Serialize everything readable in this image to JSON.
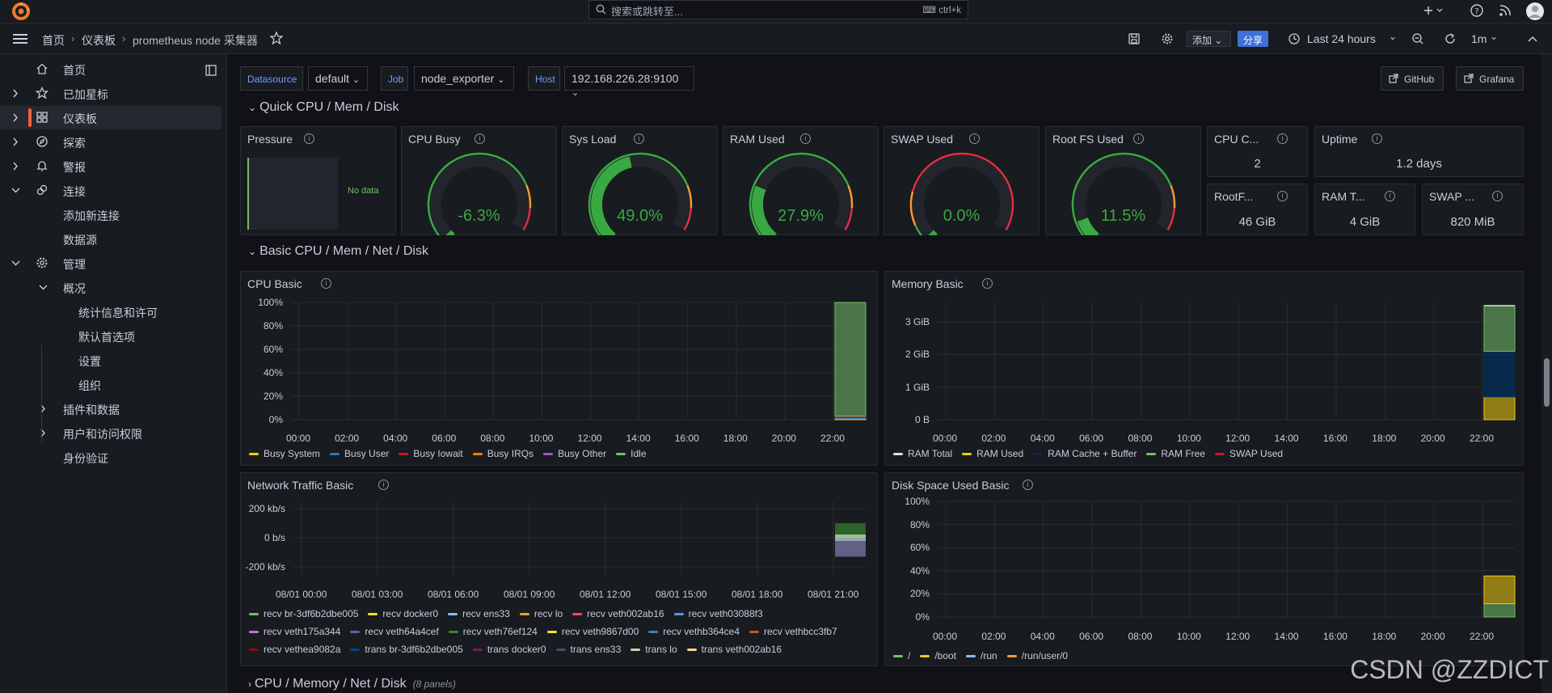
{
  "search": {
    "placeholder": "搜索或跳转至...",
    "shortcut": "ctrl+k"
  },
  "breadcrumb": {
    "home": "首页",
    "dashboards": "仪表板",
    "current": "prometheus node 采集器"
  },
  "toolbar": {
    "add_label": "添加",
    "share_label": "分享",
    "time_range": "Last 24 hours",
    "refresh_interval": "1m"
  },
  "sidebar": {
    "items": [
      {
        "label": "首页"
      },
      {
        "label": "已加星标"
      },
      {
        "label": "仪表板"
      },
      {
        "label": "探索"
      },
      {
        "label": "警报"
      },
      {
        "label": "连接"
      },
      {
        "label": "添加新连接"
      },
      {
        "label": "数据源"
      },
      {
        "label": "管理"
      },
      {
        "label": "概况"
      },
      {
        "label": "统计信息和许可"
      },
      {
        "label": "默认首选项"
      },
      {
        "label": "设置"
      },
      {
        "label": "组织"
      },
      {
        "label": "插件和数据"
      },
      {
        "label": "用户和访问权限"
      },
      {
        "label": "身份验证"
      }
    ]
  },
  "variables": {
    "datasource_label": "Datasource",
    "datasource_value": "default",
    "job_label": "Job",
    "job_value": "node_exporter",
    "host_label": "Host",
    "host_value": "192.168.226.28:9100"
  },
  "links": {
    "github": "GitHub",
    "grafana": "Grafana"
  },
  "rows": {
    "quick": "Quick CPU / Mem / Disk",
    "basic": "Basic CPU / Mem / Net / Disk",
    "cpu_mem_net_disk": "CPU / Memory / Net / Disk",
    "cpu_mem_net_disk_count": "(8 panels)"
  },
  "gauges": [
    {
      "title": "Pressure",
      "value": null,
      "no_data": "No data"
    },
    {
      "title": "CPU Busy",
      "display": "-6.3%",
      "percent": -6.3,
      "color": "#3aa843"
    },
    {
      "title": "Sys Load",
      "display": "49.0%",
      "percent": 49.0,
      "color": "#3aa843"
    },
    {
      "title": "RAM Used",
      "display": "27.9%",
      "percent": 27.9,
      "color": "#3aa843"
    },
    {
      "title": "SWAP Used",
      "display": "0.0%",
      "percent": 0.0,
      "color": "#3aa843"
    },
    {
      "title": "Root FS Used",
      "display": "11.5%",
      "percent": 11.5,
      "color": "#3aa843"
    }
  ],
  "stats": [
    {
      "title": "CPU C...",
      "value": "2"
    },
    {
      "title": "Uptime",
      "value": "1.2 days"
    },
    {
      "title": "RootF...",
      "value": "46 GiB"
    },
    {
      "title": "RAM T...",
      "value": "4 GiB"
    },
    {
      "title": "SWAP ...",
      "value": "820 MiB"
    }
  ],
  "chart_data": [
    {
      "type": "area",
      "title": "CPU Basic",
      "x": [
        "00:00",
        "02:00",
        "04:00",
        "06:00",
        "08:00",
        "10:00",
        "12:00",
        "14:00",
        "16:00",
        "18:00",
        "20:00",
        "22:00"
      ],
      "y_ticks": [
        "100%",
        "80%",
        "60%",
        "40%",
        "20%",
        "0%"
      ],
      "ylim": [
        0,
        100
      ],
      "series": [
        {
          "name": "Busy System",
          "color": "#f2cc0c",
          "values": [
            null,
            null,
            null,
            null,
            null,
            null,
            null,
            null,
            null,
            null,
            null,
            1
          ]
        },
        {
          "name": "Busy User",
          "color": "#1f78c1",
          "values": [
            null,
            null,
            null,
            null,
            null,
            null,
            null,
            null,
            null,
            null,
            null,
            1
          ]
        },
        {
          "name": "Busy Iowait",
          "color": "#c4162a",
          "values": [
            null,
            null,
            null,
            null,
            null,
            null,
            null,
            null,
            null,
            null,
            null,
            1
          ]
        },
        {
          "name": "Busy IRQs",
          "color": "#ff780a",
          "values": [
            null,
            null,
            null,
            null,
            null,
            null,
            null,
            null,
            null,
            null,
            null,
            0
          ]
        },
        {
          "name": "Busy Other",
          "color": "#a352cc",
          "values": [
            null,
            null,
            null,
            null,
            null,
            null,
            null,
            null,
            null,
            null,
            null,
            0
          ]
        },
        {
          "name": "Idle",
          "color": "#73bf69",
          "values": [
            null,
            null,
            null,
            null,
            null,
            null,
            null,
            null,
            null,
            null,
            null,
            97
          ]
        }
      ]
    },
    {
      "type": "area",
      "title": "Memory Basic",
      "x": [
        "00:00",
        "02:00",
        "04:00",
        "06:00",
        "08:00",
        "10:00",
        "12:00",
        "14:00",
        "16:00",
        "18:00",
        "20:00",
        "22:00"
      ],
      "y_ticks": [
        "3 GiB",
        "2 GiB",
        "1 GiB",
        "0 B"
      ],
      "ylim": [
        0,
        3.6
      ],
      "series": [
        {
          "name": "RAM Total",
          "color": "#e0e0e0",
          "values": [
            null,
            null,
            null,
            null,
            null,
            null,
            null,
            null,
            null,
            null,
            null,
            3.5
          ]
        },
        {
          "name": "RAM Used",
          "color": "#f2cc0c",
          "values": [
            null,
            null,
            null,
            null,
            null,
            null,
            null,
            null,
            null,
            null,
            null,
            0.7
          ]
        },
        {
          "name": "RAM Cache + Buffer",
          "color": "#052b51",
          "values": [
            null,
            null,
            null,
            null,
            null,
            null,
            null,
            null,
            null,
            null,
            null,
            1.4
          ]
        },
        {
          "name": "RAM Free",
          "color": "#73bf69",
          "values": [
            null,
            null,
            null,
            null,
            null,
            null,
            null,
            null,
            null,
            null,
            null,
            1.4
          ]
        },
        {
          "name": "SWAP Used",
          "color": "#c4162a",
          "values": [
            null,
            null,
            null,
            null,
            null,
            null,
            null,
            null,
            null,
            null,
            null,
            0
          ]
        }
      ]
    },
    {
      "type": "area",
      "title": "Network Traffic Basic",
      "x": [
        "08/01 00:00",
        "08/01 03:00",
        "08/01 06:00",
        "08/01 09:00",
        "08/01 12:00",
        "08/01 15:00",
        "08/01 18:00",
        "08/01 21:00"
      ],
      "y_ticks": [
        "200 kb/s",
        "0 b/s",
        "-200 kb/s"
      ],
      "ylim": [
        -250,
        250
      ],
      "series": [
        {
          "name": "recv br-3df6b2dbe005",
          "color": "#73bf69"
        },
        {
          "name": "recv docker0",
          "color": "#fade2a"
        },
        {
          "name": "recv ens33",
          "color": "#8ab8ff"
        },
        {
          "name": "recv lo",
          "color": "#ff9830"
        },
        {
          "name": "recv veth002ab16",
          "color": "#f2495c"
        },
        {
          "name": "recv veth03088f3",
          "color": "#5794f2"
        },
        {
          "name": "recv veth175a344",
          "color": "#b877d9"
        },
        {
          "name": "recv veth64a4cef",
          "color": "#705da0"
        },
        {
          "name": "recv veth76ef124",
          "color": "#37872d"
        },
        {
          "name": "recv veth9867d00",
          "color": "#fade2a"
        },
        {
          "name": "recv vethb364ce4",
          "color": "#447ebc"
        },
        {
          "name": "recv vethbcc3fb7",
          "color": "#c15c17"
        },
        {
          "name": "recv vethea9082a",
          "color": "#890f02"
        },
        {
          "name": "trans br-3df6b2dbe005",
          "color": "#0a437c"
        },
        {
          "name": "trans docker0",
          "color": "#6d1f62"
        },
        {
          "name": "trans ens33",
          "color": "#584477"
        },
        {
          "name": "trans lo",
          "color": "#b7dbab"
        },
        {
          "name": "trans veth002ab16",
          "color": "#f4d598"
        }
      ]
    },
    {
      "type": "area",
      "title": "Disk Space Used Basic",
      "x": [
        "00:00",
        "02:00",
        "04:00",
        "06:00",
        "08:00",
        "10:00",
        "12:00",
        "14:00",
        "16:00",
        "18:00",
        "20:00",
        "22:00"
      ],
      "y_ticks": [
        "100%",
        "80%",
        "60%",
        "40%",
        "20%",
        "0%"
      ],
      "ylim": [
        0,
        100
      ],
      "series": [
        {
          "name": "/",
          "color": "#73bf69",
          "values": [
            null,
            null,
            null,
            null,
            null,
            null,
            null,
            null,
            null,
            null,
            null,
            11.5
          ]
        },
        {
          "name": "/boot",
          "color": "#f2cc0c",
          "values": [
            null,
            null,
            null,
            null,
            null,
            null,
            null,
            null,
            null,
            null,
            null,
            24
          ]
        },
        {
          "name": "/run",
          "color": "#8ab8ff",
          "values": [
            null,
            null,
            null,
            null,
            null,
            null,
            null,
            null,
            null,
            null,
            null,
            1
          ]
        },
        {
          "name": "/run/user/0",
          "color": "#ff9830",
          "values": [
            null,
            null,
            null,
            null,
            null,
            null,
            null,
            null,
            null,
            null,
            null,
            0
          ]
        }
      ]
    }
  ],
  "watermark": "CSDN @ZZDICT"
}
